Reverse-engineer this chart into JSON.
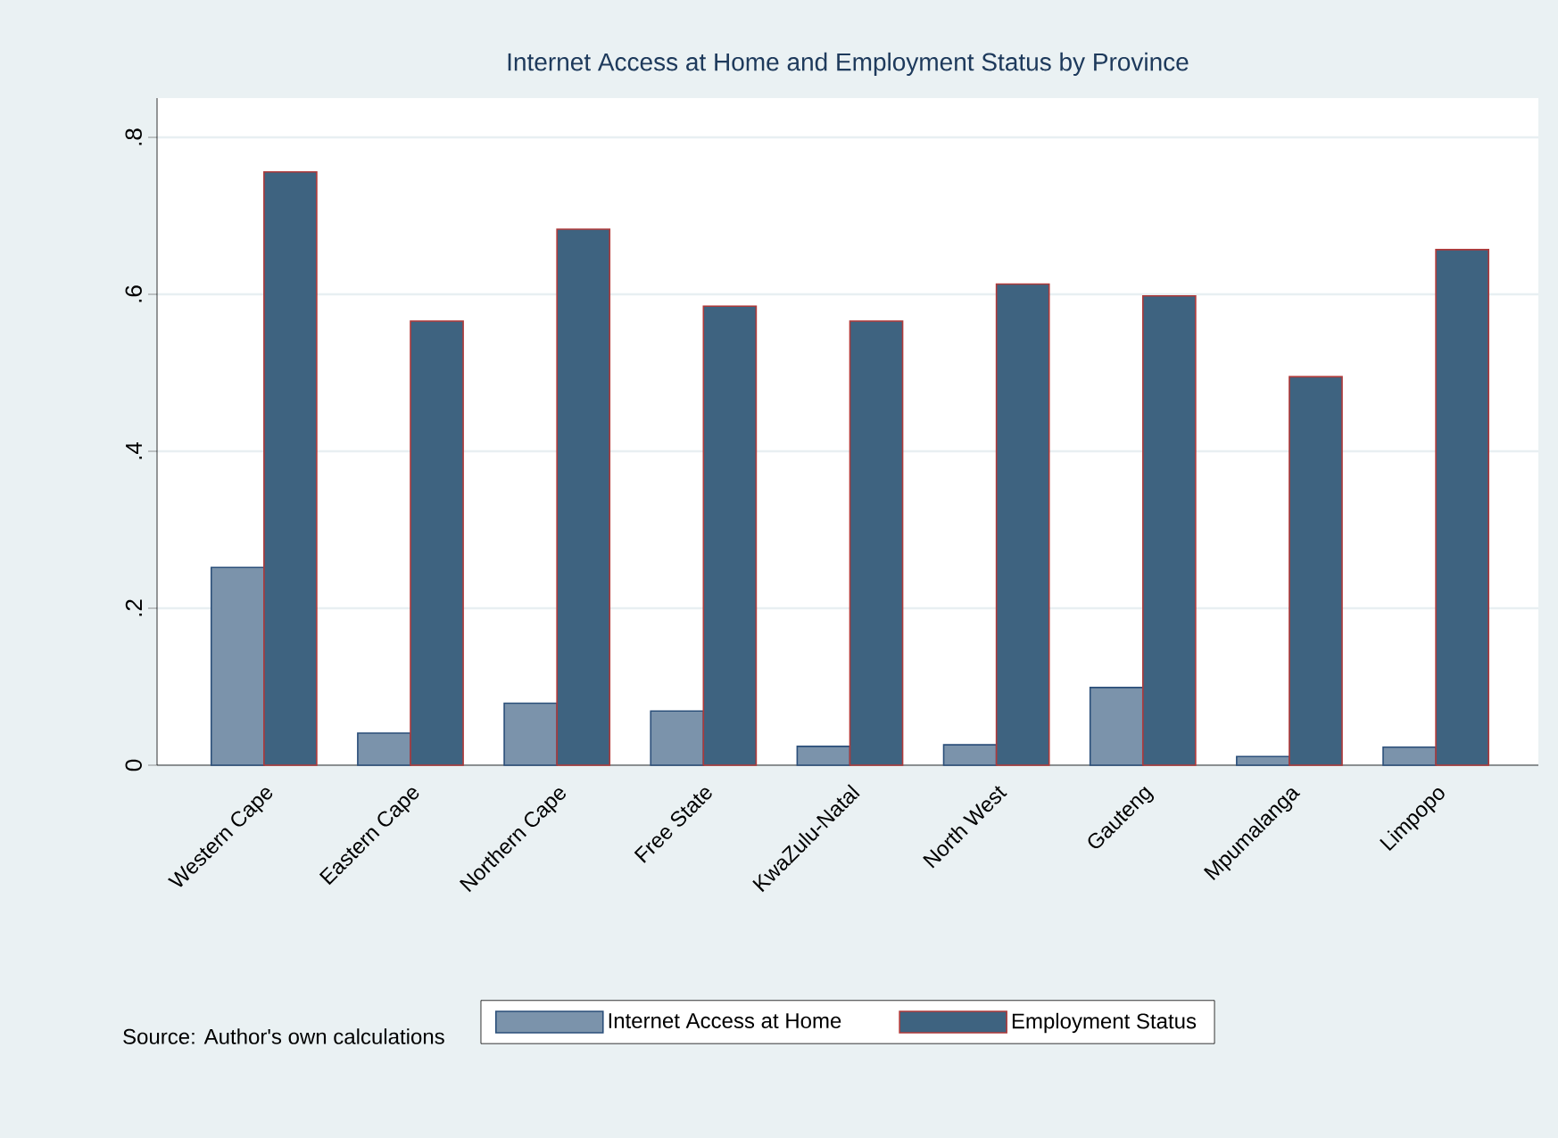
{
  "chart_data": {
    "type": "bar",
    "title": "Internet Access at Home and Employment Status by Province",
    "categories": [
      "Western Cape",
      "Eastern Cape",
      "Northern Cape",
      "Free State",
      "KwaZulu-Natal",
      "North West",
      "Gauteng",
      "Mpumalanga",
      "Limpopo"
    ],
    "series": [
      {
        "name": "Internet Access at Home",
        "color": "#7b93ab",
        "values": [
          0.252,
          0.041,
          0.079,
          0.069,
          0.024,
          0.026,
          0.099,
          0.011,
          0.023
        ]
      },
      {
        "name": "Employment Status",
        "color": "#3e6380",
        "values": [
          0.756,
          0.566,
          0.683,
          0.585,
          0.566,
          0.613,
          0.598,
          0.495,
          0.657
        ]
      }
    ],
    "ylim": [
      0,
      0.85
    ],
    "yticks": [
      0,
      {
        "value": 0.2,
        "label": ".2"
      },
      {
        "value": 0.4,
        "label": ".4"
      },
      {
        "value": 0.6,
        "label": ".6"
      },
      {
        "value": 0.8,
        "label": ".8"
      }
    ],
    "grid": "y",
    "legend": "bottom",
    "annotations": [
      "Source: Author's own calculations"
    ]
  }
}
